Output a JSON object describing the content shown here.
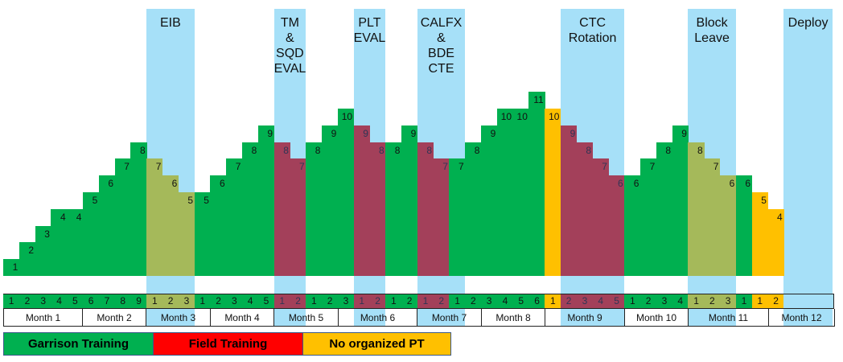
{
  "colors": {
    "garrison": "#00B050",
    "field": "#A3405A",
    "field_legend": "#FF0000",
    "none": "#FFC000",
    "garrison_in_event": "#A5B95A",
    "event_band": "#A6E0F8"
  },
  "events": [
    {
      "label": "EIB",
      "start_week": 9,
      "end_week": 12
    },
    {
      "label": "TM\n&\nSQD\nEVAL",
      "start_week": 17,
      "end_week": 19
    },
    {
      "label": "PLT\nEVAL",
      "start_week": 22,
      "end_week": 24
    },
    {
      "label": "CALFX\n&\nBDE\nCTE",
      "start_week": 26,
      "end_week": 29
    },
    {
      "label": "CTC\nRotation",
      "start_week": 35,
      "end_week": 39
    },
    {
      "label": "Block\nLeave",
      "start_week": 43,
      "end_week": 46
    },
    {
      "label": "Deploy",
      "start_week": 49,
      "end_week": 52
    }
  ],
  "chart_data": {
    "type": "bar",
    "title": "",
    "ylim": [
      0,
      11
    ],
    "weeks": [
      {
        "value": 1,
        "type": "garrison",
        "week": "1"
      },
      {
        "value": 2,
        "type": "garrison",
        "week": "2"
      },
      {
        "value": 3,
        "type": "garrison",
        "week": "3"
      },
      {
        "value": 4,
        "type": "garrison",
        "week": "4"
      },
      {
        "value": 4,
        "type": "garrison",
        "week": "5"
      },
      {
        "value": 5,
        "type": "garrison",
        "week": "6"
      },
      {
        "value": 6,
        "type": "garrison",
        "week": "7"
      },
      {
        "value": 7,
        "type": "garrison",
        "week": "8"
      },
      {
        "value": 8,
        "type": "garrison",
        "week": "9"
      },
      {
        "value": 7,
        "type": "garrison_in_event",
        "week": "1"
      },
      {
        "value": 6,
        "type": "garrison_in_event",
        "week": "2"
      },
      {
        "value": 5,
        "type": "garrison_in_event",
        "week": "3"
      },
      {
        "value": 5,
        "type": "garrison",
        "week": "1"
      },
      {
        "value": 6,
        "type": "garrison",
        "week": "2"
      },
      {
        "value": 7,
        "type": "garrison",
        "week": "3"
      },
      {
        "value": 8,
        "type": "garrison",
        "week": "4"
      },
      {
        "value": 9,
        "type": "garrison",
        "week": "5"
      },
      {
        "value": 8,
        "type": "field",
        "week": "1"
      },
      {
        "value": 7,
        "type": "field",
        "week": "2"
      },
      {
        "value": 8,
        "type": "garrison",
        "week": "1"
      },
      {
        "value": 9,
        "type": "garrison",
        "week": "2"
      },
      {
        "value": 10,
        "type": "garrison",
        "week": "3"
      },
      {
        "value": 9,
        "type": "field",
        "week": "1"
      },
      {
        "value": 8,
        "type": "field",
        "week": "2"
      },
      {
        "value": 8,
        "type": "garrison",
        "week": "1"
      },
      {
        "value": 9,
        "type": "garrison",
        "week": "2"
      },
      {
        "value": 8,
        "type": "field",
        "week": "1"
      },
      {
        "value": 7,
        "type": "field",
        "week": "2"
      },
      {
        "value": 7,
        "type": "garrison",
        "week": "1"
      },
      {
        "value": 8,
        "type": "garrison",
        "week": "2"
      },
      {
        "value": 9,
        "type": "garrison",
        "week": "3"
      },
      {
        "value": 10,
        "type": "garrison",
        "week": "4"
      },
      {
        "value": 10,
        "type": "garrison",
        "week": "5"
      },
      {
        "value": 11,
        "type": "garrison",
        "week": "6"
      },
      {
        "value": 10,
        "type": "none",
        "week": "1"
      },
      {
        "value": 9,
        "type": "field",
        "week": "2"
      },
      {
        "value": 8,
        "type": "field",
        "week": "3"
      },
      {
        "value": 7,
        "type": "field",
        "week": "4"
      },
      {
        "value": 6,
        "type": "field",
        "week": "5"
      },
      {
        "value": 6,
        "type": "garrison",
        "week": "1"
      },
      {
        "value": 7,
        "type": "garrison",
        "week": "2"
      },
      {
        "value": 8,
        "type": "garrison",
        "week": "3"
      },
      {
        "value": 9,
        "type": "garrison",
        "week": "4"
      },
      {
        "value": 8,
        "type": "garrison_in_event",
        "week": "1"
      },
      {
        "value": 7,
        "type": "garrison_in_event",
        "week": "2"
      },
      {
        "value": 6,
        "type": "garrison_in_event",
        "week": "3"
      },
      {
        "value": 6,
        "type": "garrison",
        "week": "1"
      },
      {
        "value": 5,
        "type": "none",
        "week": "1"
      },
      {
        "value": 4,
        "type": "none",
        "week": "2"
      }
    ],
    "months": [
      {
        "label": "Month 1",
        "start": 0,
        "end": 5
      },
      {
        "label": "Month 2",
        "start": 5,
        "end": 9
      },
      {
        "label": "Month 3",
        "start": 9,
        "end": 13
      },
      {
        "label": "Month 4",
        "start": 13,
        "end": 17
      },
      {
        "label": "Month 5",
        "start": 17,
        "end": 21
      },
      {
        "label": "Month 6",
        "start": 21,
        "end": 26
      },
      {
        "label": "Month 7",
        "start": 26,
        "end": 30
      },
      {
        "label": "Month 8",
        "start": 30,
        "end": 34
      },
      {
        "label": "Month 9",
        "start": 34,
        "end": 39
      },
      {
        "label": "Month 10",
        "start": 39,
        "end": 43
      },
      {
        "label": "Month 11",
        "start": 43,
        "end": 48
      },
      {
        "label": "Month 12",
        "start": 48,
        "end": 52
      }
    ]
  },
  "legend": [
    {
      "label": "Garrison Training",
      "color": "#00B050"
    },
    {
      "label": "Field Training",
      "color": "#FF0000"
    },
    {
      "label": "No organized PT",
      "color": "#FFC000"
    }
  ]
}
